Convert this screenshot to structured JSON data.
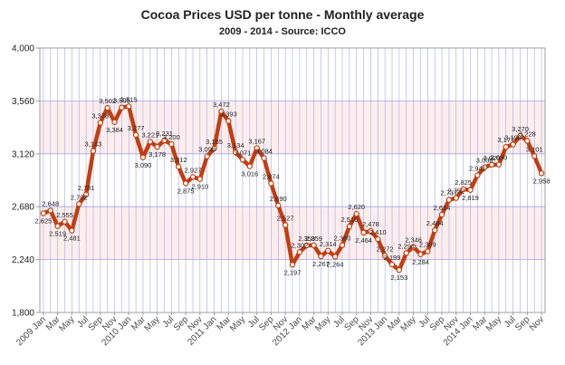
{
  "chart_data": {
    "type": "line",
    "title": "Cocoa Prices USD per tonne - Monthly average",
    "subtitle": "2009 - 2014 - Source: ICCO",
    "xlabel": "",
    "ylabel": "",
    "ylim": [
      1800,
      4000
    ],
    "y_ticks": [
      "1,800",
      "2,240",
      "2,680",
      "3,120",
      "3,560",
      "4,000"
    ],
    "y_tick_values": [
      1800,
      2240,
      2680,
      3120,
      3560,
      4000
    ],
    "grid": true,
    "x": [
      "2009 Jan",
      "Feb",
      "Mar",
      "Apr",
      "May",
      "Jun",
      "Jul",
      "Aug",
      "Sep",
      "Oct",
      "Nov",
      "Dec",
      "2010 Jan",
      "Feb",
      "Mar",
      "Apr",
      "May",
      "Jun",
      "Jul",
      "Aug",
      "Sep",
      "Oct",
      "Nov",
      "Dec",
      "2011 Jan",
      "Feb",
      "Mar",
      "Apr",
      "May",
      "Jun",
      "Jul",
      "Aug",
      "Sep",
      "Oct",
      "Nov",
      "Dec",
      "2012 Jan",
      "Feb",
      "Mar",
      "Apr",
      "May",
      "Jun",
      "Jul",
      "Aug",
      "Sep",
      "Oct",
      "Nov",
      "Dec",
      "2013 Jan",
      "Feb",
      "Mar",
      "Apr",
      "May",
      "Jun",
      "Jul",
      "Aug",
      "Sep",
      "Oct",
      "Nov",
      "Dec",
      "2014 Jan",
      "Feb",
      "Mar",
      "Apr",
      "May",
      "Jun",
      "Jul",
      "Aug",
      "Sep",
      "Oct",
      "Nov"
    ],
    "x_tick_labels": [
      "2009 Jan",
      "Mar",
      "May",
      "Jul",
      "Sep",
      "Nov",
      "2010 Jan",
      "Mar",
      "May",
      "Jul",
      "Sep",
      "Nov",
      "2011 Jan",
      "Mar",
      "May",
      "Jul",
      "Sep",
      "Nov",
      "2012 Jan",
      "Mar",
      "May",
      "Jul",
      "Sep",
      "Nov",
      "2013 Jan",
      "Mar",
      "May",
      "Jul",
      "Sep",
      "Nov",
      "2014 Jan",
      "Mar",
      "May",
      "Jul",
      "Sep",
      "Nov"
    ],
    "series": [
      {
        "name": "",
        "values": [
          2625,
          2648,
          2519,
          2555,
          2481,
          2702,
          2781,
          3143,
          3378,
          3502,
          3384,
          3505,
          3515,
          3277,
          3090,
          3221,
          3178,
          3231,
          3200,
          3012,
          2875,
          2927,
          2910,
          3098,
          3165,
          3472,
          3393,
          3134,
          3071,
          3016,
          3167,
          3084,
          2874,
          2690,
          2527,
          2197,
          2302,
          2358,
          2359,
          2267,
          2314,
          2264,
          2360,
          2516,
          2620,
          2464,
          2478,
          2410,
          2272,
          2199,
          2153,
          2294,
          2346,
          2284,
          2309,
          2484,
          2614,
          2737,
          2752,
          2825,
          2819,
          2941,
          3008,
          3029,
          3030,
          3177,
          3198,
          3270,
          3228,
          3101,
          2958
        ],
        "labels": [
          "2,625",
          "2,648",
          "2,519",
          "2,555",
          "2,481",
          "2,702",
          "2,781",
          "3,143",
          "3,378",
          "3,502",
          "3,384",
          "3,505",
          "3,515",
          "3,277",
          "3,090",
          "3,221",
          "3,178",
          "3,231",
          "3,200",
          "3,012",
          "2,875",
          "2,927",
          "2,910",
          "3,098",
          "3,165",
          "3,472",
          "3,393",
          "3,134",
          "3,071",
          "3,016",
          "3,167",
          "3,084",
          "2,874",
          "2,690",
          "2,527",
          "2,197",
          "2,302",
          "2,358",
          "2,359",
          "2,267",
          "2,314",
          "2,264",
          "2,360",
          "2,516",
          "2,620",
          "2,464",
          "2,478",
          "2,410",
          "2,272",
          "2,199",
          "2,153",
          "2,294",
          "2,346",
          "2,284",
          "2,309",
          "2,484",
          "2,614",
          "2,737",
          "2,752",
          "2,825",
          "2,819",
          "2,941",
          "3,008",
          "3,029",
          "3,030",
          "3,177",
          "3,198",
          "3,270",
          "3,228",
          "3,101",
          "2,958"
        ],
        "color": "#c43d0e"
      }
    ]
  },
  "colors": {
    "line": "#c43d0e",
    "band": "#fdeeee",
    "grid": "#a6a6e8",
    "frame": "#9c9c9c"
  }
}
